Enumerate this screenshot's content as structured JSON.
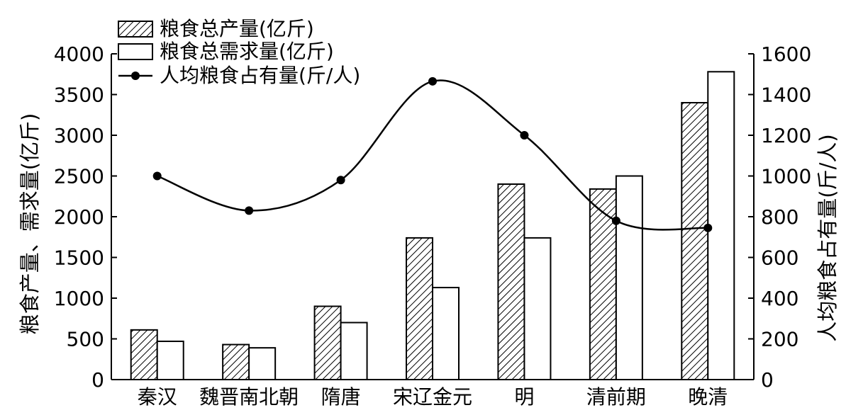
{
  "chart_data": {
    "type": "bar",
    "categories": [
      "秦汉",
      "魏晋南北朝",
      "隋唐",
      "宋辽金元",
      "明",
      "清前期",
      "晚清"
    ],
    "series": [
      {
        "name": "粮食总产量(亿斤)",
        "kind": "bar",
        "fill": "hatched",
        "axis": "left",
        "values": [
          610,
          430,
          900,
          1740,
          2400,
          2340,
          3400
        ]
      },
      {
        "name": "粮食总需求量(亿斤)",
        "kind": "bar",
        "fill": "white",
        "axis": "left",
        "values": [
          470,
          390,
          700,
          1130,
          1740,
          2500,
          3780
        ]
      },
      {
        "name": "人均粮食占有量(斤/人)",
        "kind": "line",
        "marker": "dot",
        "axis": "right",
        "values": [
          1000,
          830,
          980,
          1465,
          1200,
          780,
          745
        ]
      }
    ],
    "ylabel": "粮食产量、需求量(亿斤)",
    "y2label": "人均粮食占有量(斤/人)",
    "ylim": [
      0,
      4000
    ],
    "y2lim": [
      0,
      1600
    ],
    "yticks": [
      0,
      500,
      1000,
      1500,
      2000,
      2500,
      3000,
      3500,
      4000
    ],
    "y2ticks": [
      0,
      200,
      400,
      600,
      800,
      1000,
      1200,
      1400,
      1600
    ],
    "grid": false,
    "legend_position": "top-left",
    "colors": {
      "axis": "#000000",
      "bar_stroke": "#000000",
      "bar_fill_open": "#ffffff",
      "line": "#000000"
    }
  }
}
